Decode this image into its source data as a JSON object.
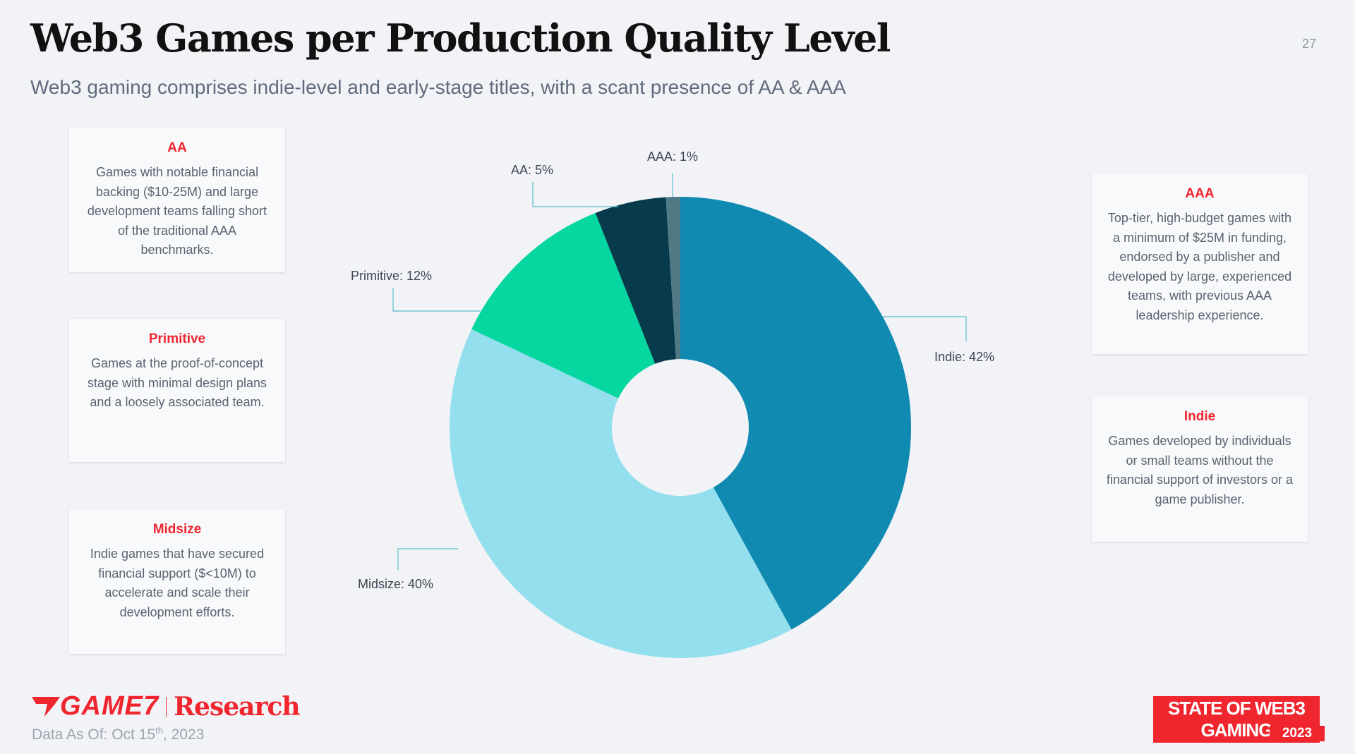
{
  "header": {
    "title": "Web3 Games per Production Quality Level",
    "subtitle": "Web3 gaming comprises indie-level and early-stage titles, with a scant presence of AA & AAA",
    "page_number": "27"
  },
  "cards": [
    {
      "title": "AA",
      "text": "Games with notable financial backing ($10-25M) and large development teams falling short of the traditional AAA benchmarks."
    },
    {
      "title": "Primitive",
      "text": "Games at the proof-of-concept stage with minimal design plans and a loosely associated team."
    },
    {
      "title": "Midsize",
      "text": "Indie games that have secured financial support ($<10M) to accelerate and scale their development efforts."
    },
    {
      "title": "AAA",
      "text": "Top-tier, high-budget games with a minimum of $25M in funding, endorsed by a publisher and developed by large, experienced teams, with previous AAA leadership experience."
    },
    {
      "title": "Indie",
      "text": "Games developed by individuals or small teams without the financial support of investors or a game publisher."
    }
  ],
  "chart_data": {
    "type": "pie",
    "donut": true,
    "start": "top",
    "direction": "clockwise",
    "categories": [
      "Indie",
      "Midsize",
      "Primitive",
      "AA",
      "AAA"
    ],
    "values": [
      42,
      40,
      12,
      5,
      1
    ],
    "labels": [
      "Indie: 42%",
      "Midsize: 40%",
      "Primitive: 12%",
      "AA: 5%",
      "AAA: 1%"
    ],
    "colors": [
      "#118ab2",
      "#93dfee",
      "#06d6a0",
      "#073b4c",
      "#4f7a85"
    ]
  },
  "footer": {
    "brand": "GAME7",
    "brand_suffix": "Research",
    "date_prefix": "Data As Of: Oct 15",
    "date_sup": "th",
    "date_suffix": ", 2023",
    "badge": "STATE OF WEB3 GAMING",
    "badge_year": "2023"
  }
}
